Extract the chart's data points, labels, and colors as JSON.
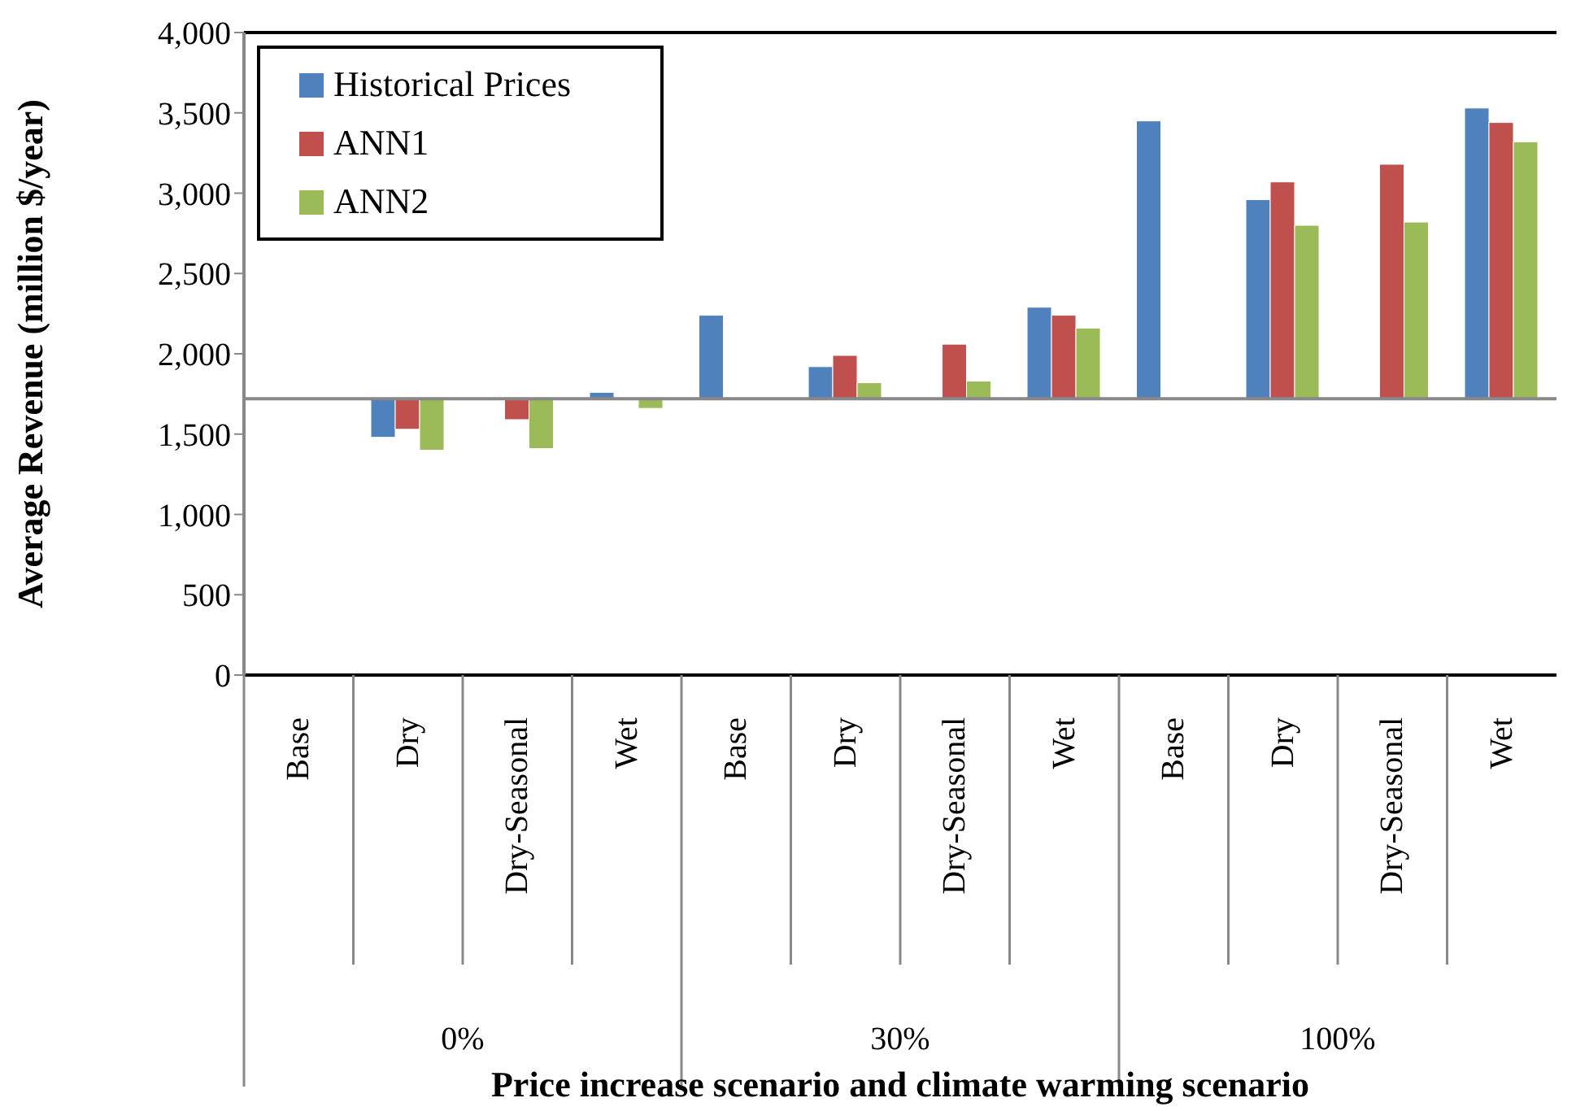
{
  "chart_data": {
    "type": "bar",
    "xlabel": "Price increase scenario and climate warming scenario",
    "ylabel": "Average Revenue (million $/year)",
    "categories": [
      "Base",
      "Dry",
      "Dry-Seasonal",
      "Wet",
      "Base",
      "Dry",
      "Dry-Seasonal",
      "Wet",
      "Base",
      "Dry",
      "Dry-Seasonal",
      "Wet"
    ],
    "series": [
      {
        "name": "Historical Prices",
        "color": "#4f81bd",
        "base": [
          null,
          1720,
          null,
          1720,
          1720,
          1720,
          null,
          1720,
          1720,
          1720,
          null,
          1720
        ],
        "values": [
          null,
          -240,
          null,
          40,
          520,
          200,
          null,
          570,
          1730,
          1240,
          null,
          1810
        ]
      },
      {
        "name": "ANN1",
        "color": "#c0504d",
        "base": [
          null,
          1720,
          1720,
          null,
          null,
          1720,
          1720,
          1720,
          null,
          1720,
          1720,
          1720
        ],
        "values": [
          null,
          -190,
          -130,
          null,
          null,
          270,
          340,
          520,
          null,
          1350,
          1460,
          1720
        ]
      },
      {
        "name": "ANN2",
        "color": "#9bbb59",
        "base": [
          null,
          1720,
          1720,
          1720,
          null,
          1720,
          1720,
          1720,
          null,
          1720,
          1720,
          1720
        ],
        "values": [
          null,
          -320,
          -310,
          -60,
          null,
          100,
          110,
          440,
          null,
          1080,
          1100,
          1600
        ]
      }
    ],
    "annotations": [
      "0%",
      "30%",
      "100%"
    ],
    "ref_lines": [
      {
        "axis": "y",
        "value": 1720,
        "color": "#888888"
      }
    ],
    "ylim": [
      0,
      4000
    ],
    "yticks": [
      {
        "value": 0,
        "label": "0"
      },
      {
        "value": 500,
        "label": "500"
      },
      {
        "value": 1000,
        "label": "1,000"
      },
      {
        "value": 1500,
        "label": "1,500"
      },
      {
        "value": 2000,
        "label": "2,000"
      },
      {
        "value": 2500,
        "label": "2,500"
      },
      {
        "value": 3000,
        "label": "3,000"
      },
      {
        "value": 3500,
        "label": "3,500"
      },
      {
        "value": 4000,
        "label": "4,000"
      }
    ],
    "grid": false,
    "legend": "top left"
  }
}
